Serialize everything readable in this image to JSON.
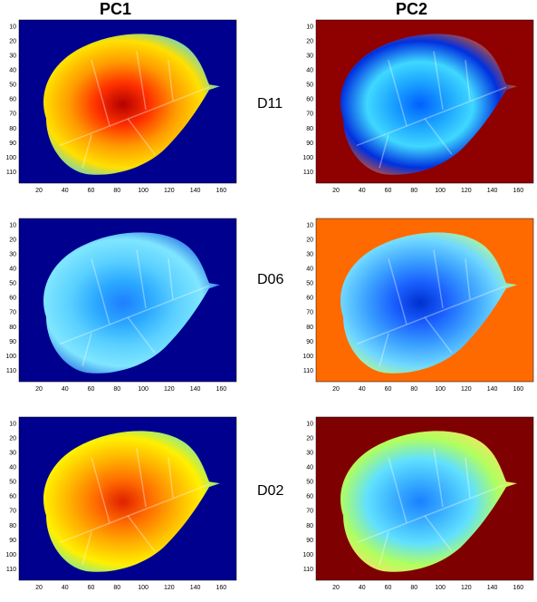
{
  "columns": [
    "PC1",
    "PC2"
  ],
  "rows": [
    {
      "label": "D11",
      "pc1_bg": "#00008f",
      "pc2_bg": "#8f0000"
    },
    {
      "label": "D06",
      "pc1_bg": "#00008f",
      "pc2_bg": "#ff6a00"
    },
    {
      "label": "D02",
      "pc1_bg": "#00008f",
      "pc2_bg": "#7f0000"
    }
  ],
  "x_ticks": [
    "20",
    "40",
    "60",
    "80",
    "100",
    "120",
    "140",
    "160"
  ],
  "y_ticks": [
    "10",
    "20",
    "30",
    "40",
    "50",
    "60",
    "70",
    "80",
    "90",
    "100",
    "110"
  ],
  "colormap": "jet"
}
